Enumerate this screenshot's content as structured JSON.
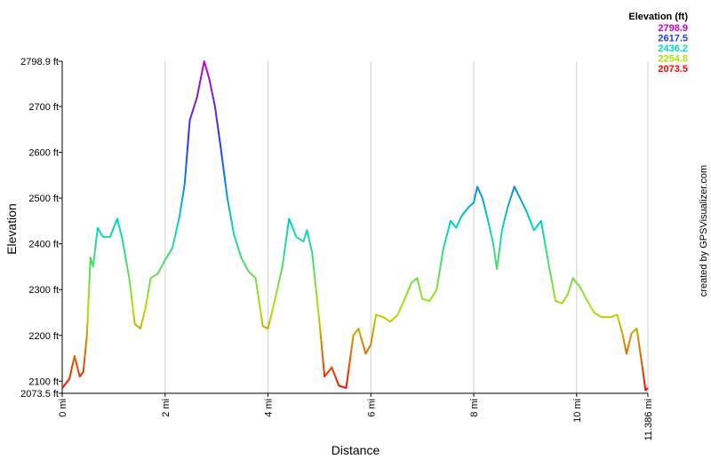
{
  "chart_data": {
    "type": "line",
    "x_label": "Distance",
    "y_label": "Elevation",
    "legend_title": "Elevation (ft)",
    "color_scale": [
      {
        "value": 2798.9,
        "color": "#cc00cc"
      },
      {
        "value": 2617.5,
        "color": "#1f3cff"
      },
      {
        "value": 2436.2,
        "color": "#00d8c0"
      },
      {
        "value": 2254.8,
        "color": "#b4e000"
      },
      {
        "value": 2073.5,
        "color": "#ff0000"
      }
    ],
    "credit": "created by GPSVisualizer.com",
    "x": [
      0,
      0.14,
      0.24,
      0.34,
      0.41,
      0.48,
      0.55,
      0.6,
      0.69,
      0.79,
      0.93,
      1.07,
      1.17,
      1.31,
      1.41,
      1.52,
      1.62,
      1.72,
      1.86,
      2.0,
      2.14,
      2.28,
      2.38,
      2.48,
      2.62,
      2.76,
      2.86,
      2.97,
      3.07,
      3.21,
      3.34,
      3.48,
      3.62,
      3.76,
      3.9,
      4.0,
      4.14,
      4.28,
      4.41,
      4.55,
      4.69,
      4.76,
      4.86,
      5.0,
      5.1,
      5.24,
      5.38,
      5.52,
      5.66,
      5.76,
      5.9,
      6.0,
      6.1,
      6.24,
      6.38,
      6.52,
      6.66,
      6.79,
      6.9,
      7.0,
      7.14,
      7.28,
      7.41,
      7.55,
      7.66,
      7.76,
      7.9,
      8.0,
      8.07,
      8.17,
      8.28,
      8.38,
      8.45,
      8.55,
      8.66,
      8.79,
      8.9,
      9.03,
      9.17,
      9.31,
      9.45,
      9.59,
      9.72,
      9.83,
      9.93,
      10.07,
      10.21,
      10.34,
      10.48,
      10.66,
      10.79,
      10.9,
      10.97,
      11.07,
      11.17,
      11.28,
      11.34,
      11.386
    ],
    "values": [
      2085,
      2105,
      2155,
      2110,
      2120,
      2200,
      2370,
      2350,
      2435,
      2415,
      2415,
      2455,
      2410,
      2320,
      2225,
      2215,
      2260,
      2325,
      2335,
      2365,
      2390,
      2460,
      2530,
      2670,
      2720,
      2798.9,
      2760,
      2700,
      2620,
      2500,
      2420,
      2370,
      2340,
      2325,
      2220,
      2215,
      2280,
      2350,
      2455,
      2415,
      2405,
      2430,
      2380,
      2230,
      2110,
      2130,
      2090,
      2085,
      2200,
      2215,
      2160,
      2180,
      2245,
      2240,
      2230,
      2245,
      2280,
      2315,
      2325,
      2280,
      2275,
      2300,
      2390,
      2450,
      2435,
      2460,
      2480,
      2490,
      2525,
      2500,
      2450,
      2400,
      2345,
      2430,
      2480,
      2525,
      2500,
      2470,
      2430,
      2450,
      2360,
      2275,
      2270,
      2290,
      2325,
      2305,
      2275,
      2250,
      2240,
      2240,
      2245,
      2200,
      2160,
      2205,
      2215,
      2130,
      2080,
      2085
    ],
    "xlim": [
      0,
      11.386
    ],
    "ylim": [
      2073.5,
      2798.9
    ],
    "xticks": [
      {
        "value": 0,
        "label": "0 mi"
      },
      {
        "value": 2,
        "label": "2 mi"
      },
      {
        "value": 4,
        "label": "4 mi"
      },
      {
        "value": 6,
        "label": "6 mi"
      },
      {
        "value": 8,
        "label": "8 mi"
      },
      {
        "value": 10,
        "label": "10 mi"
      },
      {
        "value": 11.386,
        "label": "11.386 mi"
      }
    ],
    "yticks": [
      {
        "value": 2073.5,
        "label": "2073.5 ft"
      },
      {
        "value": 2100,
        "label": "2100 ft"
      },
      {
        "value": 2200,
        "label": "2200 ft"
      },
      {
        "value": 2300,
        "label": "2300 ft"
      },
      {
        "value": 2400,
        "label": "2400 ft"
      },
      {
        "value": 2500,
        "label": "2500 ft"
      },
      {
        "value": 2600,
        "label": "2600 ft"
      },
      {
        "value": 2700,
        "label": "2700 ft"
      },
      {
        "value": 2798.9,
        "label": "2798.9 ft"
      }
    ],
    "grid": "x"
  }
}
